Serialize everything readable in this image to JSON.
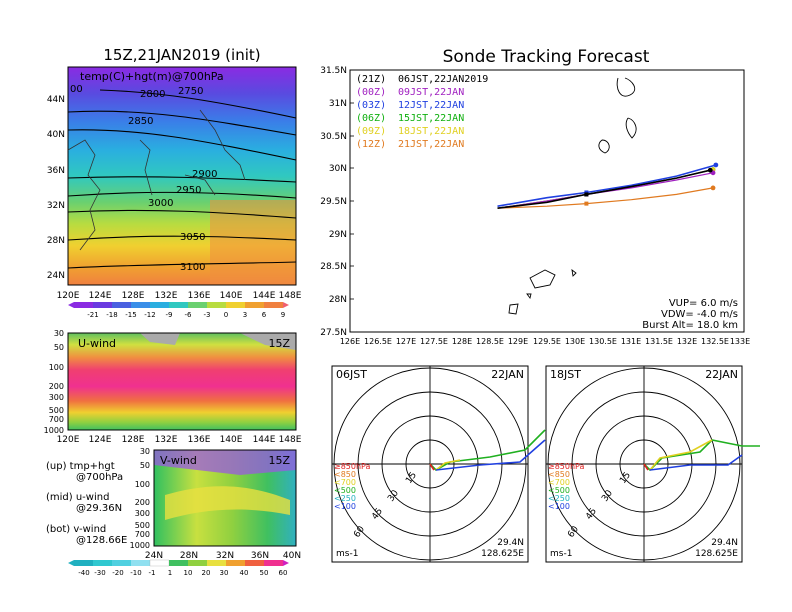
{
  "top_left": {
    "title": "15Z,21JAN2019 (init)",
    "field_label": "temp(C)+hgt(m)@700hPa",
    "lat_labels": [
      "44N",
      "40N",
      "36N",
      "32N",
      "28N",
      "24N"
    ],
    "lon_labels": [
      "120E",
      "124E",
      "128E",
      "132E",
      "136E",
      "140E",
      "144E",
      "148E"
    ],
    "contour_labels": [
      "2800",
      "2750",
      "2850",
      "2900",
      "2950",
      "3000",
      "3050",
      "3100",
      "00"
    ],
    "colorbar_labels": [
      "-21",
      "-18",
      "-15",
      "-12",
      "-9",
      "-6",
      "-3",
      "0",
      "3",
      "6",
      "9"
    ]
  },
  "mid_left": {
    "label": "U-wind",
    "time": "15Z",
    "p_labels": [
      "30",
      "50",
      "100",
      "200",
      "300",
      "500",
      "700",
      "1000"
    ],
    "lon_labels": [
      "120E",
      "124E",
      "128E",
      "132E",
      "136E",
      "140E",
      "144E",
      "148E"
    ]
  },
  "bot_left": {
    "label": "V-wind",
    "time": "15Z",
    "p_labels": [
      "30",
      "50",
      "100",
      "200",
      "300",
      "500",
      "700",
      "1000"
    ],
    "lat_labels": [
      "24N",
      "28N",
      "32N",
      "36N",
      "40N"
    ],
    "colorbar_labels": [
      "-40",
      "-30",
      "-20",
      "-10",
      "-1",
      "1",
      "10",
      "20",
      "30",
      "40",
      "50",
      "60"
    ]
  },
  "legend_text": {
    "line1": "(up) tmp+hgt",
    "line2": "@700hPa",
    "line3": "(mid) u-wind",
    "line4": "@29.36N",
    "line5": "(bot) v-wind",
    "line6": "@128.66E"
  },
  "tracking": {
    "title": "Sonde Tracking Forecast",
    "lat_labels": [
      "31.5N",
      "31N",
      "30.5N",
      "30N",
      "29.5N",
      "29N",
      "28.5N",
      "28N",
      "27.5N"
    ],
    "lon_labels": [
      "126E",
      "126.5E",
      "127E",
      "127.5E",
      "128E",
      "128.5E",
      "129E",
      "129.5E",
      "130E",
      "130.5E",
      "131E",
      "131.5E",
      "132E",
      "132.5E",
      "133E"
    ],
    "legend": [
      {
        "code": "(21Z)",
        "text": "06JST,22JAN2019",
        "color": "#000000"
      },
      {
        "code": "(00Z)",
        "text": "09JST,22JAN",
        "color": "#a020c0"
      },
      {
        "code": "(03Z)",
        "text": "12JST,22JAN",
        "color": "#2040e0"
      },
      {
        "code": "(06Z)",
        "text": "15JST,22JAN",
        "color": "#10b010"
      },
      {
        "code": "(09Z)",
        "text": "18JST,22JAN",
        "color": "#e0d020"
      },
      {
        "code": "(12Z)",
        "text": "21JST,22JAN",
        "color": "#e07a20"
      }
    ],
    "params": {
      "vup": "VUP=  6.0  m/s",
      "vdw": "VDW=  -4.0  m/s",
      "burst": "Burst Alt=  18.0  km"
    }
  },
  "hodo_left": {
    "time": "06JST",
    "date": "22JAN",
    "lat": "29.4N",
    "lon": "128.625E",
    "units": "ms-1",
    "rings": [
      "15",
      "30",
      "45",
      "60"
    ],
    "levels": [
      "≥850hPa",
      "<850",
      "<700",
      "<500",
      "<250",
      "<100"
    ]
  },
  "hodo_right": {
    "time": "18JST",
    "date": "22JAN",
    "lat": "29.4N",
    "lon": "128.625E",
    "units": "ms-1",
    "rings": [
      "15",
      "30",
      "45",
      "60"
    ],
    "levels": [
      "≥850hPa",
      "<850",
      "<700",
      "<500",
      "<250",
      "<100"
    ]
  },
  "chart_data": {
    "type": "line",
    "title": "Sonde Tracking Forecast",
    "xlim": [
      126,
      133
    ],
    "ylim": [
      27.5,
      31.5
    ],
    "series": [
      {
        "name": "(21Z) 06JST,22JAN2019",
        "color": "#000000",
        "x": [
          128.62,
          129.5,
          130.2,
          131.0,
          131.8,
          132.4
        ],
        "y": [
          29.39,
          29.48,
          29.6,
          29.72,
          29.85,
          29.97
        ]
      },
      {
        "name": "(00Z) 09JST,22JAN",
        "color": "#a020c0",
        "x": [
          128.62,
          129.5,
          130.2,
          131.0,
          131.8,
          132.45
        ],
        "y": [
          29.39,
          29.5,
          29.6,
          29.7,
          29.82,
          29.93
        ]
      },
      {
        "name": "(03Z) 12JST,22JAN",
        "color": "#2040e0",
        "x": [
          128.62,
          129.5,
          130.2,
          131.0,
          131.8,
          132.5
        ],
        "y": [
          29.42,
          29.55,
          29.63,
          29.74,
          29.88,
          30.05
        ]
      },
      {
        "name": "(06Z) 15JST,22JAN",
        "color": "#10b010",
        "x": [
          128.62,
          129.5,
          130.2,
          131.0,
          131.8,
          132.45
        ],
        "y": [
          29.39,
          29.5,
          29.6,
          29.72,
          29.85,
          29.98
        ]
      },
      {
        "name": "(09Z) 18JST,22JAN",
        "color": "#e0d020",
        "x": [
          128.62,
          129.5,
          130.2,
          131.0,
          131.8,
          132.45
        ],
        "y": [
          29.39,
          29.5,
          29.6,
          29.72,
          29.85,
          29.98
        ]
      },
      {
        "name": "(12Z) 21JST,22JAN",
        "color": "#e07a20",
        "x": [
          128.62,
          129.5,
          130.2,
          131.0,
          131.8,
          132.45
        ],
        "y": [
          29.39,
          29.42,
          29.46,
          29.52,
          29.6,
          29.7
        ]
      }
    ]
  }
}
